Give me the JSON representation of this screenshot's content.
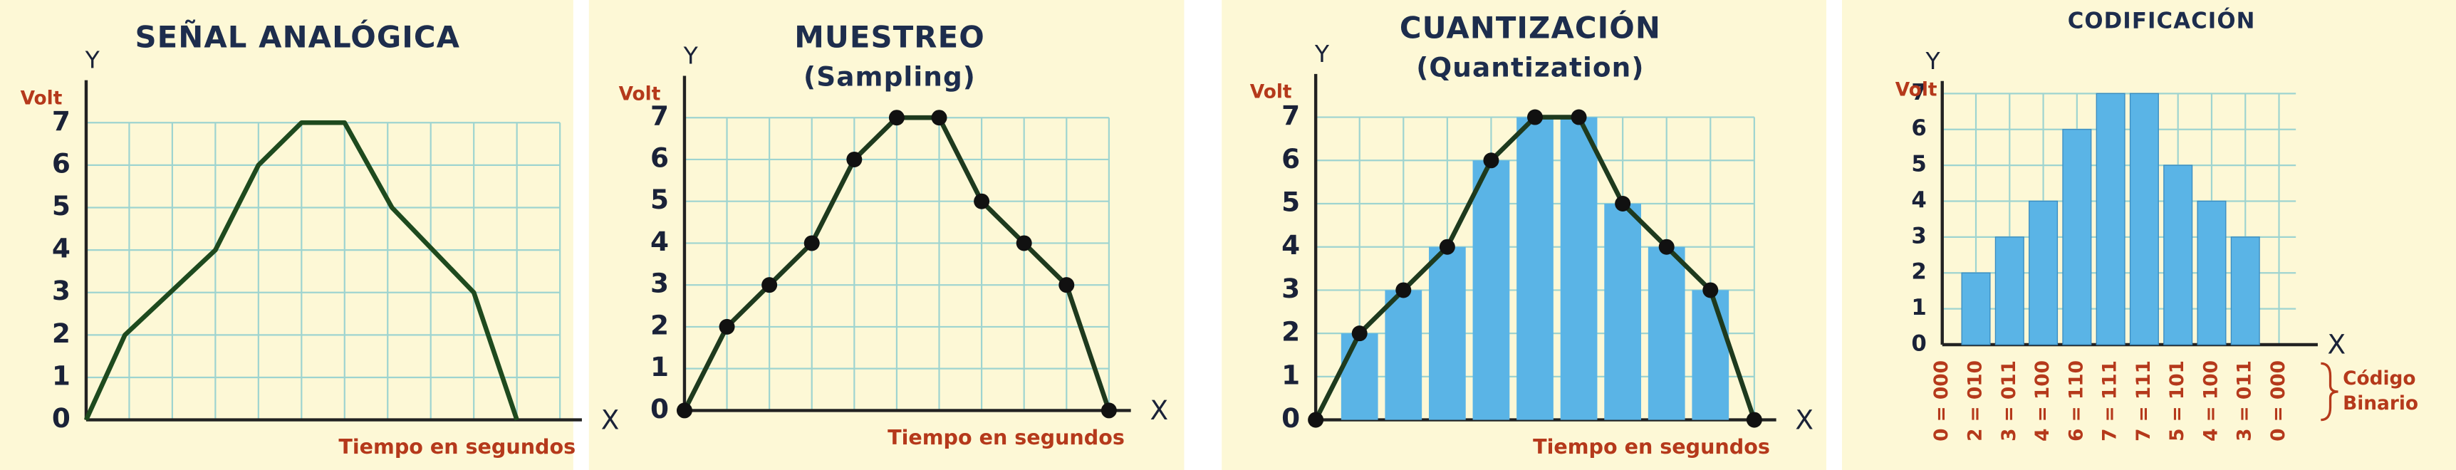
{
  "chart_data": [
    {
      "type": "line",
      "title": "SEÑAL ANALÓGICA",
      "y_axis": "Y",
      "y_label": "Volt",
      "x_axis": "X",
      "x_label": "Tiempo en segundos",
      "x": [
        0,
        0.9,
        3,
        4,
        5,
        6,
        7.1,
        9,
        10
      ],
      "values": [
        0,
        2,
        4,
        6,
        7,
        7,
        5,
        3,
        0
      ],
      "xlim": [
        0,
        11
      ],
      "ylim": [
        0,
        8
      ],
      "yticks": [
        0,
        1,
        2,
        3,
        4,
        5,
        6,
        7
      ],
      "grid": true,
      "markers": false,
      "line_color": "#1e4a1e",
      "grid_color": "#9ed4d0"
    },
    {
      "type": "line",
      "title": "MUESTREO",
      "subtitle": "(Sampling)",
      "y_axis": "Y",
      "y_label": "Volt",
      "x_axis": "X",
      "x_label": "Tiempo en segundos",
      "x": [
        0,
        1,
        2,
        3,
        4,
        5,
        6,
        7,
        8,
        9,
        10
      ],
      "values": [
        0,
        2,
        3,
        4,
        6,
        7,
        7,
        5,
        4,
        3,
        0
      ],
      "xlim": [
        0,
        10
      ],
      "ylim": [
        0,
        8
      ],
      "yticks": [
        0,
        1,
        2,
        3,
        4,
        5,
        6,
        7
      ],
      "grid": true,
      "markers": true,
      "line_color": "#1e3a1e",
      "grid_color": "#9ed4d0"
    },
    {
      "type": "line",
      "title": "CUANTIZACIÓN",
      "subtitle": "(Quantization)",
      "y_axis": "Y",
      "y_label": "Volt",
      "x_axis": "X",
      "x_label": "Tiempo en segundos",
      "x": [
        0,
        1,
        2,
        3,
        4,
        5,
        6,
        7,
        8,
        9,
        10
      ],
      "values": [
        0,
        2,
        3,
        4,
        6,
        7,
        7,
        5,
        4,
        3,
        0
      ],
      "xlim": [
        0,
        10
      ],
      "ylim": [
        0,
        8
      ],
      "yticks": [
        0,
        1,
        2,
        3,
        4,
        5,
        6,
        7
      ],
      "grid": true,
      "markers": true,
      "bars": true,
      "bar_color": "#5ab4e6",
      "line_color": "#1e3a1e",
      "grid_color": "#9ed4d0"
    },
    {
      "type": "bar",
      "title": "CODIFICACIÓN",
      "y_axis": "Y",
      "y_label": "Volt",
      "x_axis": "X",
      "categories": [
        "0 = 000",
        "2 = 010",
        "3 = 011",
        "4 = 100",
        "6 = 110",
        "7 = 111",
        "7 = 111",
        "5 = 101",
        "4 = 100",
        "3 = 011",
        "0 = 000"
      ],
      "values": [
        0,
        2,
        3,
        4,
        6,
        7,
        7,
        5,
        4,
        3,
        0
      ],
      "ylim": [
        0,
        7
      ],
      "yticks": [
        0,
        1,
        2,
        3,
        4,
        5,
        6,
        7
      ],
      "grid": true,
      "color": "#5ab4e6",
      "grid_color": "#9ed4d0",
      "annotation": [
        "Código",
        "Binario"
      ]
    }
  ]
}
